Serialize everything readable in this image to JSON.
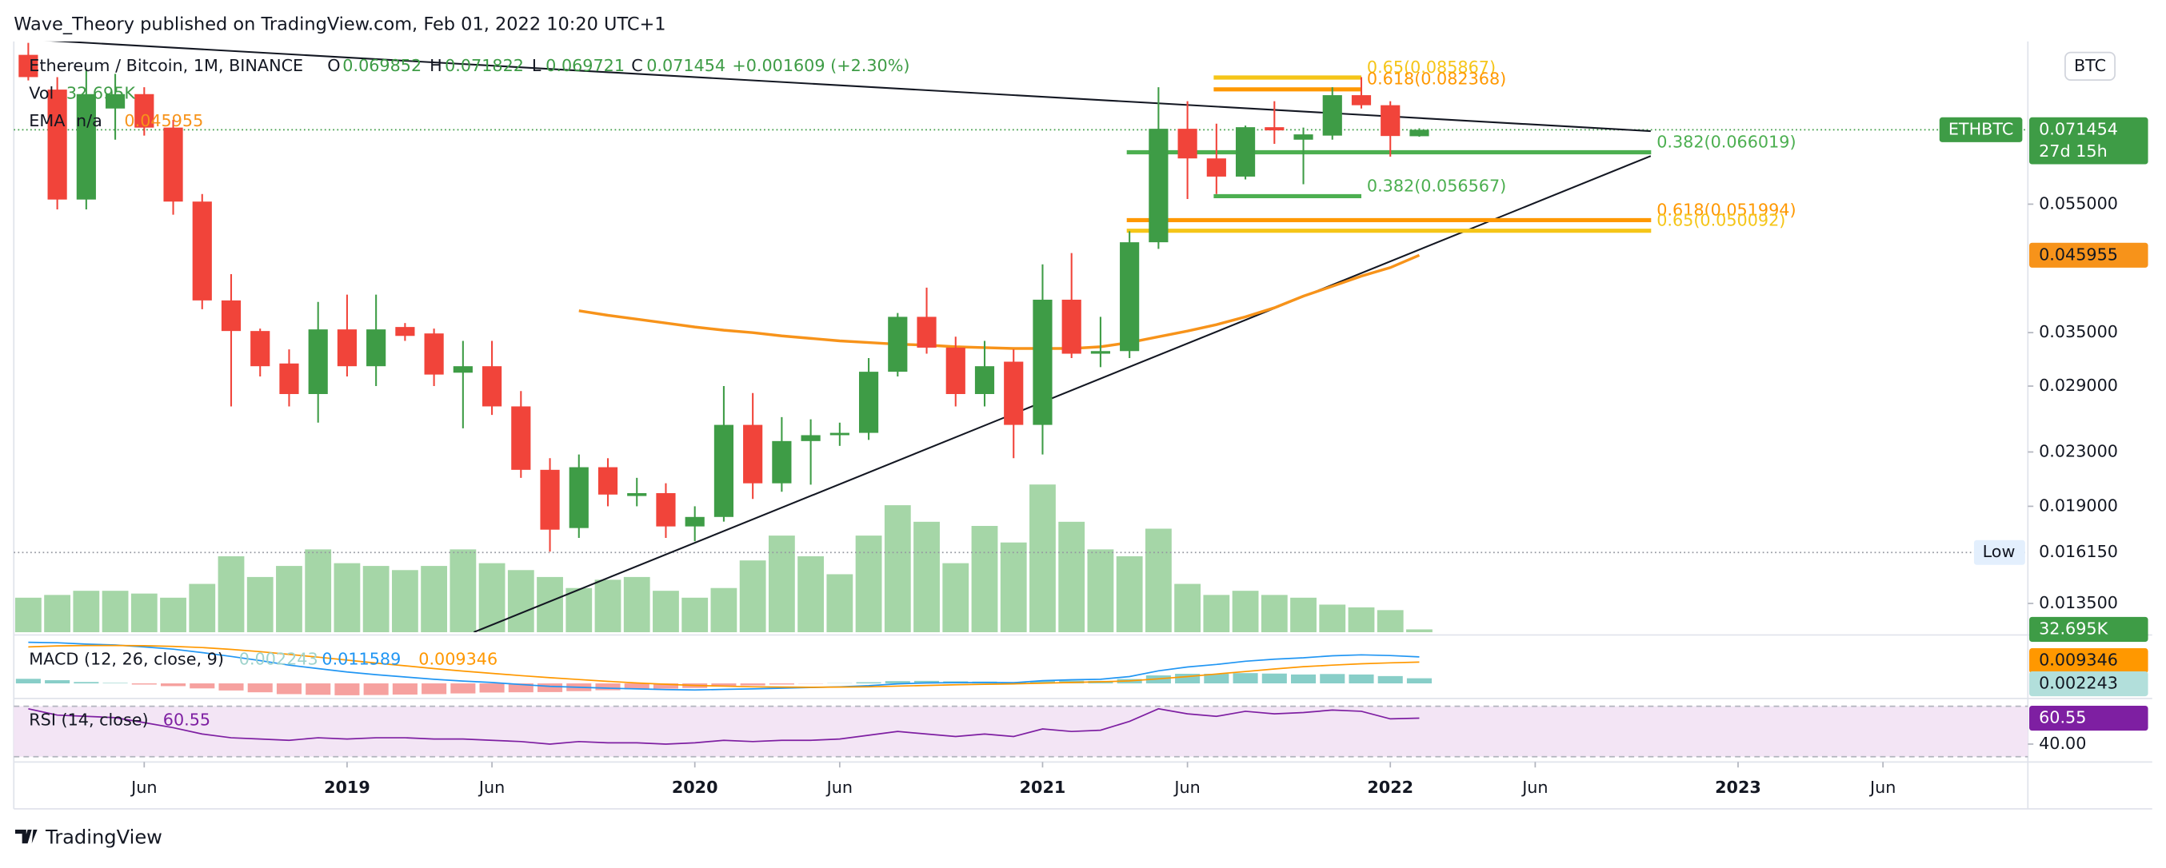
{
  "header": {
    "published": "Wave_Theory published on TradingView.com, Feb 01, 2022 10:20 UTC+1",
    "logo": "TradingView"
  },
  "chart_data": {
    "type": "candlestick",
    "symbol": "Ethereum / Bitcoin, 1M, BINANCE",
    "ohlc_labels": [
      "O",
      "H",
      "L",
      "C"
    ],
    "change": "+0.001609 (+2.30%)",
    "currency": "BTC",
    "log_scale": true,
    "grid": false,
    "x": [
      0,
      1,
      2,
      3,
      4,
      5,
      6,
      7,
      8,
      9,
      10,
      11,
      12,
      13,
      14,
      15,
      16,
      17,
      18,
      19,
      20,
      21,
      22,
      23,
      24,
      25,
      26,
      27,
      28,
      29,
      30,
      31,
      32,
      33,
      34,
      35,
      36,
      37,
      38,
      39,
      40,
      41,
      42,
      43,
      44,
      45,
      46,
      47,
      48
    ],
    "xlim": [
      -0.5,
      69
    ],
    "xticks": [
      {
        "value": 4,
        "label": "Jun"
      },
      {
        "value": 11,
        "label": "2019"
      },
      {
        "value": 16,
        "label": "Jun"
      },
      {
        "value": 23,
        "label": "2020"
      },
      {
        "value": 28,
        "label": "Jun"
      },
      {
        "value": 35,
        "label": "2021"
      },
      {
        "value": 40,
        "label": "Jun"
      },
      {
        "value": 47,
        "label": "2022"
      },
      {
        "value": 52,
        "label": "Jun"
      },
      {
        "value": 59,
        "label": "2023"
      },
      {
        "value": 64,
        "label": "Jun"
      }
    ],
    "ylim": [
      0.0122,
      0.0975
    ],
    "yticks": [
      {
        "value": 0.0135,
        "label": "0.013500"
      },
      {
        "value": 0.019,
        "label": "0.019000"
      },
      {
        "value": 0.023,
        "label": "0.023000"
      },
      {
        "value": 0.029,
        "label": "0.029000"
      },
      {
        "value": 0.035,
        "label": "0.035000"
      },
      {
        "value": 0.055,
        "label": "0.055000"
      }
    ],
    "open": [
      0.093,
      0.0823,
      0.0559,
      0.077,
      0.081,
      0.072,
      0.0555,
      0.0392,
      0.0352,
      0.0314,
      0.0282,
      0.0354,
      0.0311,
      0.0357,
      0.0349,
      0.0304,
      0.0311,
      0.027,
      0.0216,
      0.0176,
      0.0218,
      0.0197,
      0.0199,
      0.0177,
      0.0183,
      0.0253,
      0.0206,
      0.0239,
      0.0244,
      0.0246,
      0.0305,
      0.037,
      0.0332,
      0.0282,
      0.0316,
      0.0253,
      0.0393,
      0.0325,
      0.0328,
      0.0481,
      0.0717,
      0.0646,
      0.0606,
      0.0721,
      0.069,
      0.07,
      0.0807,
      0.0779,
      0.069852
    ],
    "high": [
      0.097,
      0.086,
      0.0885,
      0.087,
      0.083,
      0.074,
      0.057,
      0.043,
      0.0355,
      0.033,
      0.039,
      0.04,
      0.04,
      0.0362,
      0.0355,
      0.034,
      0.034,
      0.0285,
      0.0225,
      0.0228,
      0.0225,
      0.021,
      0.0206,
      0.019,
      0.029,
      0.0283,
      0.026,
      0.0258,
      0.0255,
      0.032,
      0.0375,
      0.041,
      0.0345,
      0.034,
      0.033,
      0.0445,
      0.0463,
      0.037,
      0.05,
      0.083,
      0.079,
      0.073,
      0.0725,
      0.079,
      0.072,
      0.083,
      0.086,
      0.079,
      0.071822
    ],
    "low": [
      0.085,
      0.054,
      0.054,
      0.069,
      0.07,
      0.053,
      0.038,
      0.027,
      0.03,
      0.027,
      0.0255,
      0.03,
      0.029,
      0.034,
      0.029,
      0.025,
      0.0262,
      0.021,
      0.0162,
      0.017,
      0.019,
      0.019,
      0.017,
      0.0168,
      0.018,
      0.0195,
      0.02,
      0.0205,
      0.0235,
      0.024,
      0.03,
      0.0325,
      0.027,
      0.027,
      0.0225,
      0.0228,
      0.032,
      0.031,
      0.032,
      0.047,
      0.056,
      0.057,
      0.06,
      0.068,
      0.059,
      0.069,
      0.077,
      0.065,
      0.069721
    ],
    "close": [
      0.086,
      0.0559,
      0.081,
      0.081,
      0.072,
      0.0555,
      0.0392,
      0.0352,
      0.0311,
      0.0282,
      0.0354,
      0.0311,
      0.0354,
      0.0346,
      0.0302,
      0.0311,
      0.027,
      0.0216,
      0.0175,
      0.0218,
      0.0198,
      0.0199,
      0.0177,
      0.0183,
      0.0253,
      0.0206,
      0.0239,
      0.0244,
      0.0246,
      0.0305,
      0.037,
      0.0332,
      0.0282,
      0.0311,
      0.0253,
      0.0393,
      0.0325,
      0.0328,
      0.0481,
      0.0717,
      0.0646,
      0.0606,
      0.0721,
      0.0713,
      0.0703,
      0.0807,
      0.0779,
      0.0699,
      0.071454
    ],
    "up_color": "#3e9c46",
    "down_color": "#f1443a",
    "last_price": {
      "symbol": "ETHBTC",
      "countdown": "27d 15h",
      "color": "#3e9c46"
    },
    "low_marker": {
      "name": "Low",
      "value": 0.01615,
      "label": "0.016150"
    },
    "volume": {
      "name": "Vol",
      "values": [
        400,
        432,
        480,
        480,
        448,
        400,
        560,
        880,
        640,
        768,
        960,
        800,
        768,
        720,
        768,
        960,
        800,
        720,
        640,
        512,
        608,
        640,
        480,
        400,
        512,
        832,
        1120,
        880,
        672,
        1120,
        1472,
        1280,
        800,
        1232,
        1040,
        1712,
        1280,
        960,
        880,
        1200,
        560,
        432,
        480,
        432,
        400,
        320,
        288,
        256,
        32.695
      ],
      "last_label": "32.695K",
      "color": "#a5d6a7",
      "ylim": [
        0,
        2000
      ]
    },
    "ema": {
      "name": "EMA",
      "status": "n/a",
      "color": "#f7931a",
      "values": [
        null,
        null,
        null,
        null,
        null,
        null,
        null,
        null,
        null,
        null,
        null,
        null,
        null,
        null,
        null,
        null,
        null,
        null,
        null,
        0.0378,
        0.0372,
        0.0367,
        0.0362,
        0.0357,
        0.0353,
        0.035,
        0.0346,
        0.0343,
        0.034,
        0.0338,
        0.0336,
        0.0335,
        0.0333,
        0.0332,
        0.0331,
        0.0331,
        0.0331,
        0.0333,
        0.0338,
        0.0345,
        0.0352,
        0.036,
        0.037,
        0.0382,
        0.0398,
        0.0412,
        0.0427,
        0.044,
        0.045955
      ]
    },
    "fib_levels": [
      {
        "label": "0.65(0.085867)",
        "value": 0.085867,
        "color": "#f5c518"
      },
      {
        "label": "0.618(0.082368)",
        "value": 0.082368,
        "color": "#ff9800"
      },
      {
        "label": "0.382(0.066019)",
        "value": 0.066019,
        "color": "#4caf50"
      },
      {
        "label": "0.382(0.056567)",
        "value": 0.056567,
        "color": "#4caf50"
      },
      {
        "label": "0.618(0.051994)",
        "value": 0.051994,
        "color": "#ff9800"
      },
      {
        "label": "0.65(0.050092)",
        "value": 0.050092,
        "color": "#f5c518"
      }
    ],
    "macd": {
      "name": "MACD (12, 26, close, 9)",
      "ylim": [
        -0.006,
        0.02
      ],
      "macd_color": "#2196f3",
      "signal_color": "#ff9800",
      "pos_color": "#26a69a",
      "neg_color": "#ef5350",
      "hist_tag_color": "#b2dfdb",
      "histogram": [
        0.002,
        0.0014,
        0.0006,
        0.0002,
        -0.0005,
        -0.0012,
        -0.0022,
        -0.0031,
        -0.0039,
        -0.0047,
        -0.005,
        -0.0052,
        -0.0051,
        -0.0049,
        -0.0047,
        -0.0044,
        -0.004,
        -0.0039,
        -0.0038,
        -0.0034,
        -0.003,
        -0.0026,
        -0.0023,
        -0.002,
        -0.0014,
        -0.0009,
        -0.0005,
        -0.0001,
        0.0001,
        0.0005,
        0.001,
        0.0011,
        0.0009,
        0.0008,
        0.0005,
        0.0011,
        0.0012,
        0.0011,
        0.0019,
        0.0035,
        0.0042,
        0.0042,
        0.0045,
        0.0043,
        0.0039,
        0.0041,
        0.0039,
        0.0032,
        0.002243
      ],
      "macd": [
        0.018,
        0.0178,
        0.0172,
        0.0168,
        0.016,
        0.015,
        0.0135,
        0.0118,
        0.01,
        0.008,
        0.0065,
        0.005,
        0.0038,
        0.0028,
        0.0018,
        0.001,
        0.0004,
        -0.0005,
        -0.0013,
        -0.0017,
        -0.0021,
        -0.0024,
        -0.0027,
        -0.0029,
        -0.0026,
        -0.0024,
        -0.0021,
        -0.0018,
        -0.0015,
        -0.001,
        -0.0002,
        0.0002,
        0.0003,
        0.0004,
        0.0003,
        0.0012,
        0.0016,
        0.0018,
        0.003,
        0.0055,
        0.0072,
        0.0083,
        0.0097,
        0.0106,
        0.0112,
        0.0121,
        0.0125,
        0.0122,
        0.011589
      ],
      "signal": [
        0.016,
        0.0164,
        0.0166,
        0.0166,
        0.0165,
        0.0162,
        0.0157,
        0.0149,
        0.0139,
        0.0127,
        0.0115,
        0.0102,
        0.0089,
        0.0077,
        0.0065,
        0.0054,
        0.0044,
        0.0034,
        0.0025,
        0.0017,
        0.0009,
        0.0002,
        -0.0004,
        -0.0009,
        -0.0012,
        -0.0015,
        -0.0016,
        -0.0017,
        -0.0016,
        -0.0015,
        -0.0012,
        -0.0009,
        -0.0006,
        -0.0004,
        -0.0002,
        0.0001,
        0.0004,
        0.0007,
        0.0011,
        0.002,
        0.003,
        0.0041,
        0.0052,
        0.0063,
        0.0073,
        0.008,
        0.0086,
        0.009,
        0.009346
      ]
    },
    "rsi": {
      "name": "RSI (14, close)",
      "color": "#7e1fa2",
      "band_color": "#f3e5f5",
      "ylim": [
        28,
        74
      ],
      "bands": [
        30,
        70
      ],
      "yticks": [
        {
          "value": 40,
          "label": "40.00"
        }
      ],
      "values": [
        68,
        63,
        62,
        61,
        57,
        53,
        48,
        45,
        44,
        43,
        45,
        44,
        45,
        45,
        44,
        44,
        43,
        42,
        40,
        42,
        41,
        41,
        40,
        41,
        43,
        42,
        43,
        43,
        44,
        47,
        50,
        48,
        46,
        48,
        46,
        52,
        50,
        51,
        58,
        68,
        64,
        62,
        66,
        64,
        65,
        67,
        66,
        60,
        60.55
      ]
    }
  }
}
